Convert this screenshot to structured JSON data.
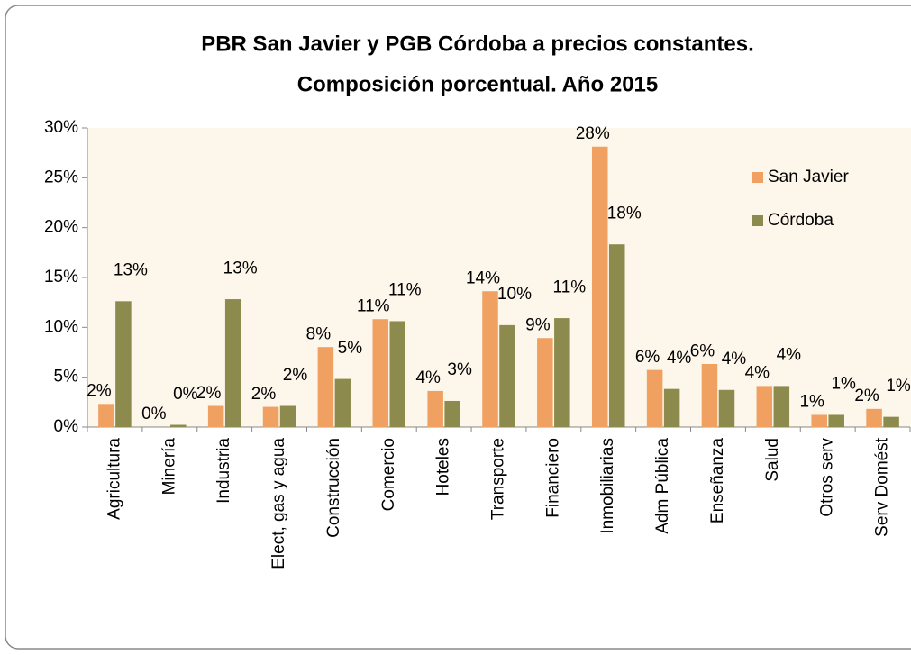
{
  "chart_data": {
    "type": "bar",
    "title": "PBR San Javier y PGB Córdoba a precios constantes.",
    "subtitle": "Composición porcentual. Año 2015",
    "categories": [
      "Agricultura",
      "Minería",
      "Industria",
      "Elect, gas y agua",
      "Construcción",
      "Comercio",
      "Hoteles",
      "Transporte",
      "Financiero",
      "Inmobiliarias",
      "Adm Pública",
      "Enseñanza",
      "Salud",
      "Otros serv",
      "Serv Domést"
    ],
    "series": [
      {
        "name": "San Javier",
        "color": "#f0a060",
        "values": [
          2.3,
          0.0,
          2.1,
          2.0,
          8.0,
          10.8,
          3.6,
          13.6,
          8.9,
          28.1,
          5.7,
          6.3,
          4.1,
          1.2,
          1.8
        ],
        "value_labels": [
          "2%",
          "0%",
          "2%",
          "2%",
          "8%",
          "11%",
          "4%",
          "14%",
          "9%",
          "28%",
          "6%",
          "6%",
          "4%",
          "1%",
          "2%"
        ]
      },
      {
        "name": "Córdoba",
        "color": "#8c8a4c",
        "values": [
          12.6,
          0.2,
          12.8,
          2.1,
          4.8,
          10.6,
          2.6,
          10.2,
          10.9,
          18.3,
          3.8,
          3.7,
          4.1,
          1.2,
          1.0
        ],
        "value_labels": [
          "13%",
          "0%",
          "13%",
          "2%",
          "5%",
          "11%",
          "3%",
          "10%",
          "11%",
          "18%",
          "4%",
          "4%",
          "4%",
          "1%",
          "1%"
        ]
      }
    ],
    "ylim": [
      0,
      30
    ],
    "yticks": [
      {
        "value": 0,
        "label": "0%"
      },
      {
        "value": 5,
        "label": "5%"
      },
      {
        "value": 10,
        "label": "10%"
      },
      {
        "value": 15,
        "label": "15%"
      },
      {
        "value": 20,
        "label": "20%"
      },
      {
        "value": 25,
        "label": "25%"
      },
      {
        "value": 30,
        "label": "30%"
      }
    ],
    "grid": false,
    "legend": "upper right"
  }
}
